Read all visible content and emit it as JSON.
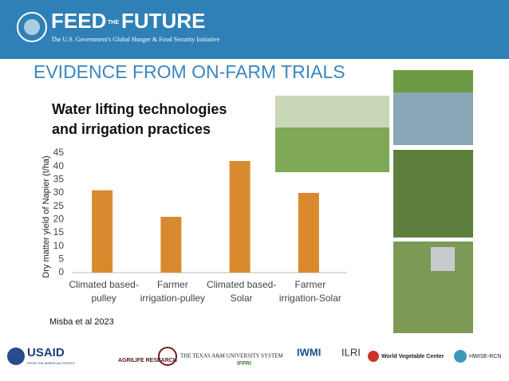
{
  "header": {
    "logo_parts": [
      "FEED",
      "THE",
      "FUTURE"
    ],
    "tagline": "The U.S. Government's Global Hunger & Food Security Initiative"
  },
  "slide_title": "EVIDENCE FROM ON-FARM TRIALS",
  "chart_data": {
    "type": "bar",
    "title": [
      "Water lifting technologies",
      "and irrigation practices"
    ],
    "y_label": "Dry matter yield of Napier (t/ha)",
    "categories": [
      [
        "Climated based-",
        "pulley"
      ],
      [
        "Farmer",
        "irrigation-pulley"
      ],
      [
        "Climated based-",
        "Solar"
      ],
      [
        "Farmer",
        "irrigation-Solar"
      ]
    ],
    "values": [
      31,
      21,
      42,
      30
    ],
    "color": "#d98a2e",
    "ylim": [
      0,
      45
    ],
    "yticks": [
      0,
      5,
      10,
      15,
      20,
      25,
      30,
      35,
      40,
      45
    ],
    "grid": false
  },
  "source": "Misba et al 2023",
  "logos": [
    "USAID",
    "FROM THE AMERICAN PEOPLE",
    "AGRILIFE RESEARCH",
    "THE TEXAS A&M UNIVERSITY SYSTEM",
    "IFPRI",
    "IWMI",
    "ILRI",
    "World Vegetable Center",
    "HWISE-RCN"
  ]
}
